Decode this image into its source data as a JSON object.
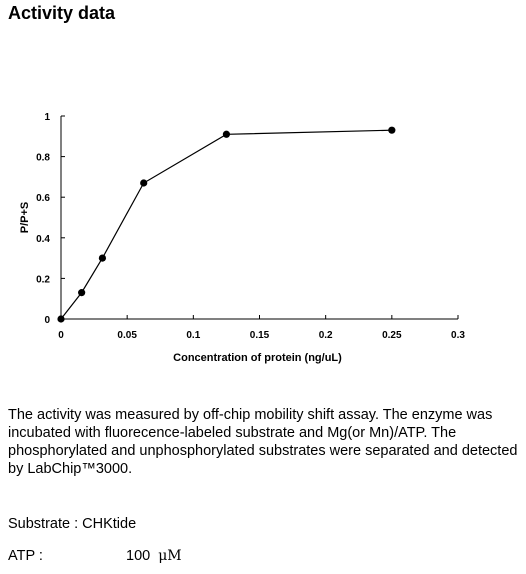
{
  "title": "Activity data",
  "chart_data": {
    "type": "line",
    "xlabel": "Concentration of protein (ng/uL)",
    "ylabel": "P/P+S",
    "xlim": [
      0,
      0.3
    ],
    "ylim": [
      0,
      1
    ],
    "x_ticks": [
      "0",
      "0.05",
      "0.1",
      "0.15",
      "0.2",
      "0.25",
      "0.3"
    ],
    "x_tick_values": [
      0,
      0.05,
      0.1,
      0.15,
      0.2,
      0.25,
      0.3
    ],
    "y_ticks": [
      "0",
      "0.2",
      "0.4",
      "0.6",
      "0.8",
      "1"
    ],
    "y_tick_values": [
      0,
      0.2,
      0.4,
      0.6,
      0.8,
      1
    ],
    "grid": false,
    "series": [
      {
        "x": [
          0,
          0.0156,
          0.0313,
          0.0625,
          0.125,
          0.25
        ],
        "y": [
          0.0,
          0.13,
          0.3,
          0.67,
          0.91,
          0.93
        ]
      }
    ]
  },
  "description": "The activity was measured by off-chip mobility shift assay. The enzyme was incubated with fluorecence-labeled  substrate and Mg(or Mn)/ATP. The phosphorylated and unphosphorylated substrates were separated and detected by LabChip™3000.",
  "substrate": "Substrate : CHKtide",
  "atp": {
    "label": "ATP :",
    "value": "100",
    "unit": "μM"
  }
}
